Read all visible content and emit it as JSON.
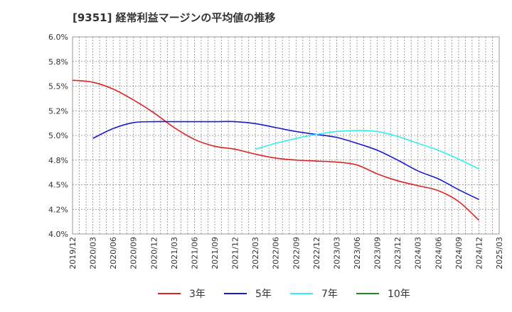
{
  "chart_data": {
    "type": "line",
    "title": "[9351]  経常利益マージンの平均値の推移",
    "xlabel": "",
    "ylabel": "",
    "ylim": [
      4.0,
      6.0
    ],
    "y_ticks": [
      "6.0%",
      "5.8%",
      "5.5%",
      "5.2%",
      "5.0%",
      "4.8%",
      "4.5%",
      "4.2%",
      "4.0%"
    ],
    "x_ticks": [
      "2019/12",
      "2020/03",
      "2020/06",
      "2020/09",
      "2020/12",
      "2021/03",
      "2021/06",
      "2021/09",
      "2021/12",
      "2022/03",
      "2022/06",
      "2022/09",
      "2022/12",
      "2023/03",
      "2023/06",
      "2023/09",
      "2023/12",
      "2024/03",
      "2024/06",
      "2024/09",
      "2024/12",
      "2025/03"
    ],
    "grid": true,
    "legend_position": "bottom",
    "series": [
      {
        "name": "3年",
        "color": "#dd2222",
        "x": [
          "2019/12",
          "2020/03",
          "2020/06",
          "2020/09",
          "2020/12",
          "2021/03",
          "2021/06",
          "2021/09",
          "2021/12",
          "2022/03",
          "2022/06",
          "2022/09",
          "2022/12",
          "2023/03",
          "2023/06",
          "2023/09",
          "2023/12",
          "2024/03",
          "2024/06",
          "2024/09",
          "2024/12"
        ],
        "values": [
          5.56,
          5.54,
          5.47,
          5.36,
          5.23,
          5.08,
          4.96,
          4.89,
          4.86,
          4.81,
          4.77,
          4.75,
          4.74,
          4.73,
          4.7,
          4.61,
          4.54,
          4.49,
          4.44,
          4.33,
          4.14
        ]
      },
      {
        "name": "5年",
        "color": "#1a1acc",
        "x": [
          "2020/03",
          "2020/06",
          "2020/09",
          "2020/12",
          "2021/03",
          "2021/06",
          "2021/09",
          "2021/12",
          "2022/03",
          "2022/06",
          "2022/09",
          "2022/12",
          "2023/03",
          "2023/06",
          "2023/09",
          "2023/12",
          "2024/03",
          "2024/06",
          "2024/09",
          "2024/12"
        ],
        "values": [
          4.97,
          5.07,
          5.13,
          5.14,
          5.14,
          5.14,
          5.14,
          5.14,
          5.12,
          5.08,
          5.04,
          5.01,
          4.98,
          4.92,
          4.85,
          4.75,
          4.64,
          4.56,
          4.45,
          4.35
        ]
      },
      {
        "name": "7年",
        "color": "#33eeee",
        "x": [
          "2022/03",
          "2022/06",
          "2022/09",
          "2022/12",
          "2023/03",
          "2023/06",
          "2023/09",
          "2023/12",
          "2024/03",
          "2024/06",
          "2024/09",
          "2024/12"
        ],
        "values": [
          4.86,
          4.92,
          4.97,
          5.01,
          5.04,
          5.05,
          5.04,
          4.99,
          4.92,
          4.85,
          4.76,
          4.66
        ]
      },
      {
        "name": "10年",
        "color": "#228822",
        "x": [],
        "values": []
      }
    ]
  }
}
